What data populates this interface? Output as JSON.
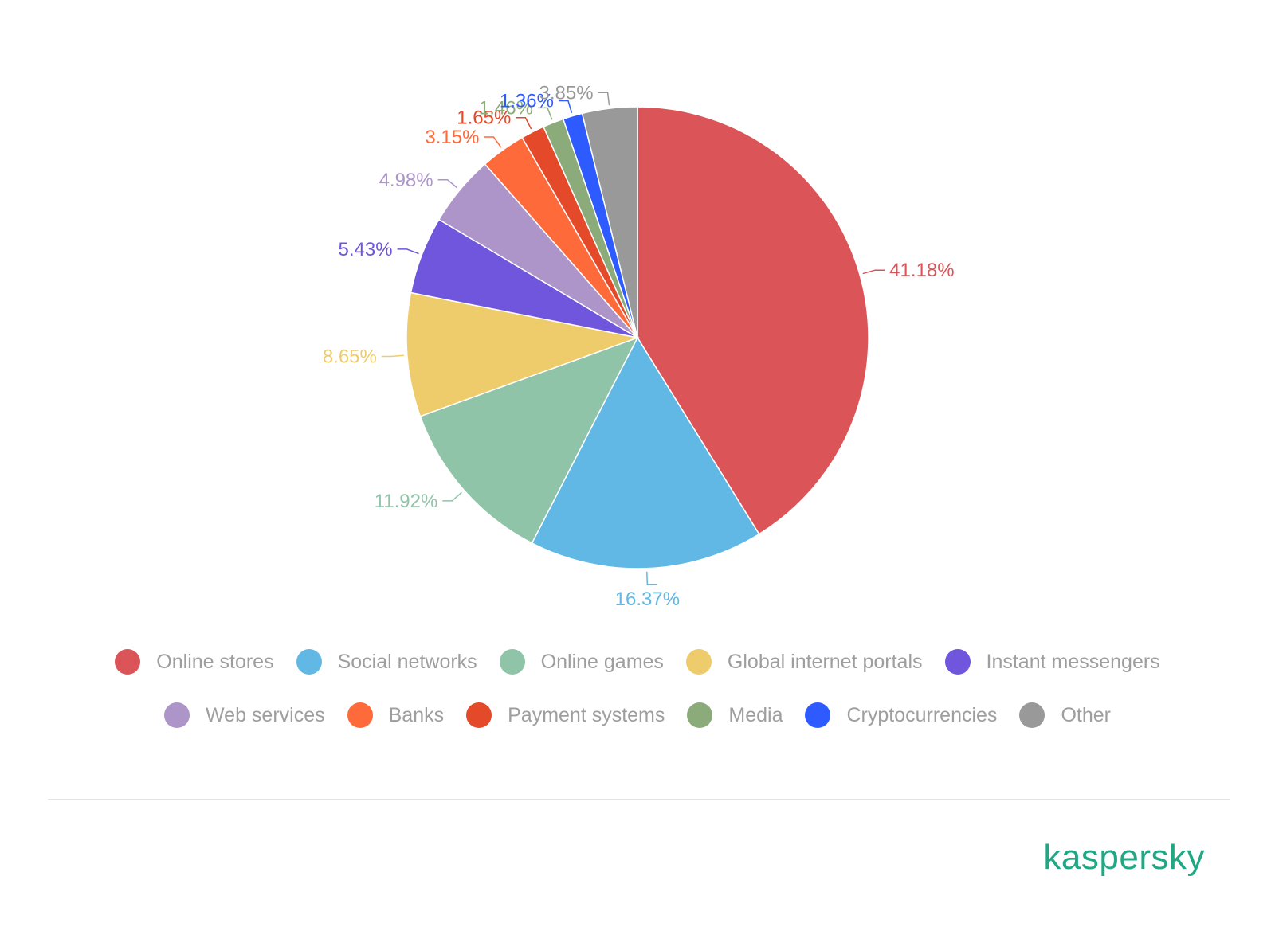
{
  "chart_data": {
    "type": "pie",
    "title": "",
    "slices": [
      {
        "name": "Online stores",
        "value": 41.18,
        "label": "41.18%",
        "color": "#db5457"
      },
      {
        "name": "Social networks",
        "value": 16.37,
        "label": "16.37%",
        "color": "#61b8e4"
      },
      {
        "name": "Online games",
        "value": 11.92,
        "label": "11.92%",
        "color": "#90c4a8"
      },
      {
        "name": "Global internet portals",
        "value": 8.65,
        "label": "8.65%",
        "color": "#efcc6b"
      },
      {
        "name": "Instant messengers",
        "value": 5.43,
        "label": "5.43%",
        "color": "#6f56dc"
      },
      {
        "name": "Web services",
        "value": 4.98,
        "label": "4.98%",
        "color": "#ad94c9"
      },
      {
        "name": "Banks",
        "value": 3.15,
        "label": "3.15%",
        "color": "#ff6a3a"
      },
      {
        "name": "Payment systems",
        "value": 1.65,
        "label": "1.65%",
        "color": "#e4492a"
      },
      {
        "name": "Media",
        "value": 1.46,
        "label": "1.46%",
        "color": "#8cab7a"
      },
      {
        "name": "Cryptocurrencies",
        "value": 1.36,
        "label": "1.36%",
        "color": "#2e5bff"
      },
      {
        "name": "Other",
        "value": 3.85,
        "label": "3.85%",
        "color": "#999999"
      }
    ],
    "start_angle": "top (12 o'clock)",
    "direction": "clockwise",
    "legend_placement": "bottom"
  },
  "legend": {
    "row1": [
      {
        "label": "Online stores",
        "color": "#db5457"
      },
      {
        "label": "Social networks",
        "color": "#61b8e4"
      },
      {
        "label": "Online games",
        "color": "#90c4a8"
      },
      {
        "label": "Global internet portals",
        "color": "#efcc6b"
      },
      {
        "label": "Instant messengers",
        "color": "#6f56dc"
      }
    ],
    "row2": [
      {
        "label": "Web services",
        "color": "#ad94c9"
      },
      {
        "label": "Banks",
        "color": "#ff6a3a"
      },
      {
        "label": "Payment systems",
        "color": "#e4492a"
      },
      {
        "label": "Media",
        "color": "#8cab7a"
      },
      {
        "label": "Cryptocurrencies",
        "color": "#2e5bff"
      },
      {
        "label": "Other",
        "color": "#999999"
      }
    ]
  },
  "brand": {
    "name": "kaspersky",
    "color": "#1fa883"
  }
}
